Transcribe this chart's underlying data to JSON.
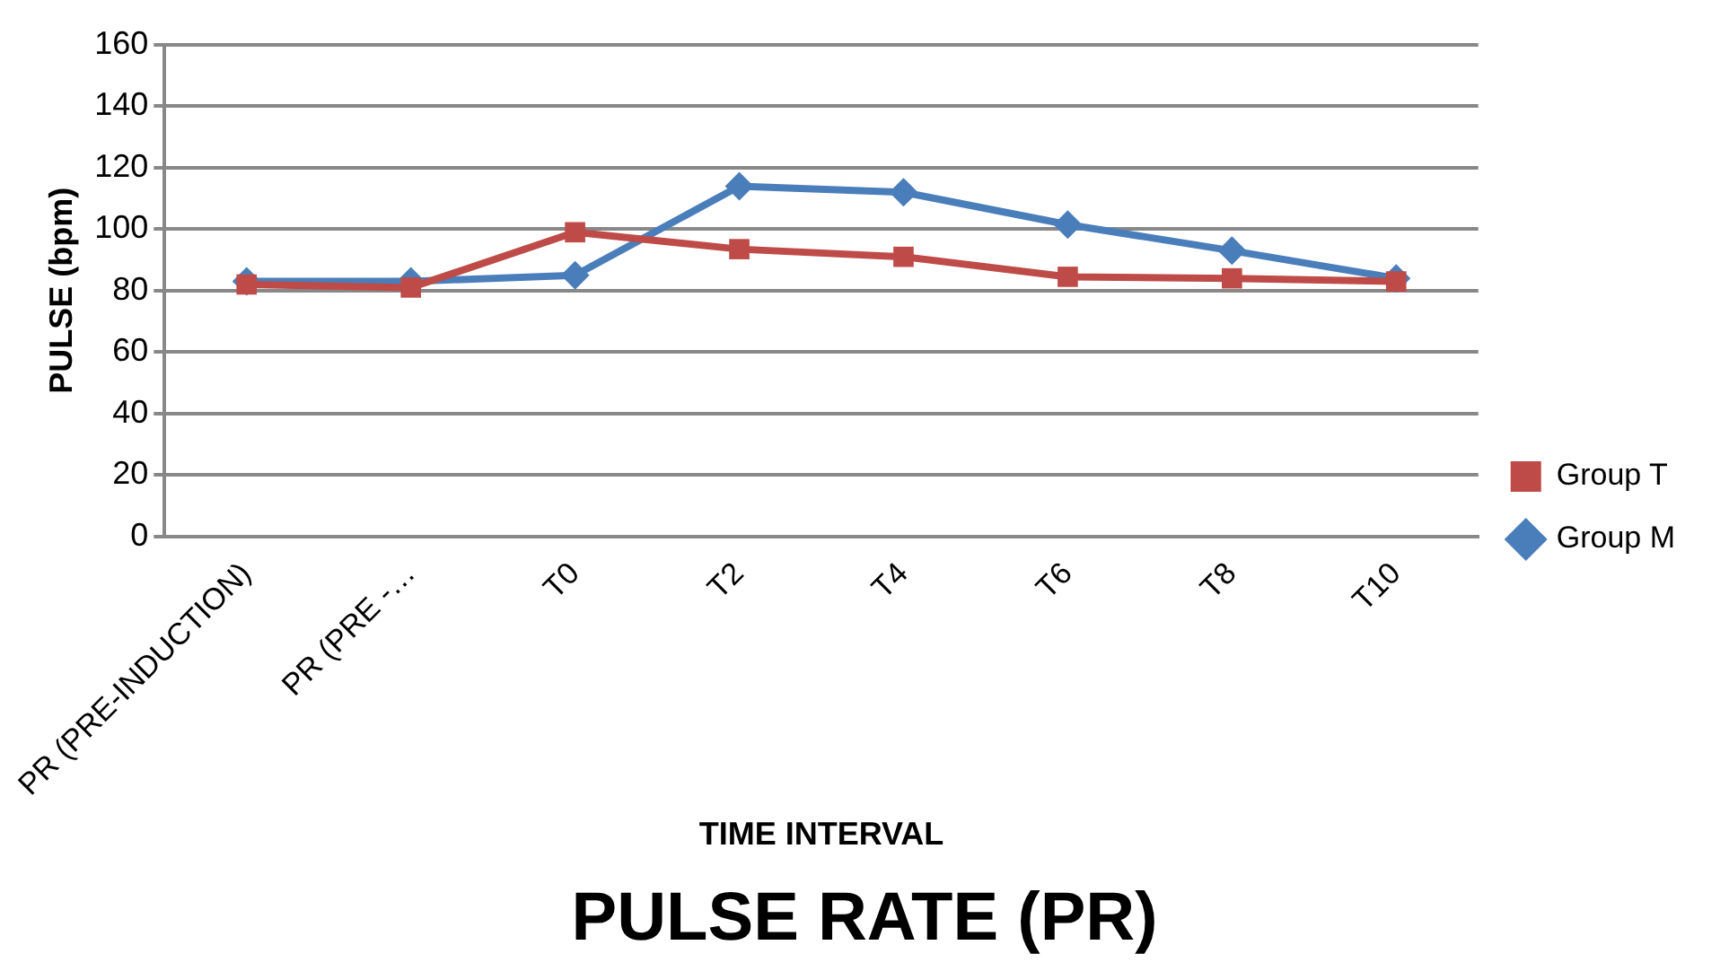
{
  "chart_data": {
    "type": "line",
    "title": "PULSE RATE (PR)",
    "xlabel": "TIME INTERVAL",
    "ylabel": "PULSE (bpm)",
    "categories": [
      "PR (PRE-INDUCTION)",
      "PR (PRE -…",
      "T0",
      "T2",
      "T4",
      "T6",
      "T8",
      "T10"
    ],
    "series": [
      {
        "name": "Group M",
        "color": "#4a7ebb",
        "marker": "diamond",
        "values": [
          83,
          83,
          85,
          114,
          112,
          101.5,
          93,
          84
        ]
      },
      {
        "name": "Group T",
        "color": "#be4b48",
        "marker": "square",
        "values": [
          82,
          81,
          99,
          93.5,
          91,
          84.5,
          84,
          83
        ]
      }
    ],
    "ylim": [
      0,
      160
    ],
    "yticks": [
      0,
      20,
      40,
      60,
      80,
      100,
      120,
      140,
      160
    ],
    "grid": "y",
    "legend": "right",
    "line_style": "solid"
  }
}
